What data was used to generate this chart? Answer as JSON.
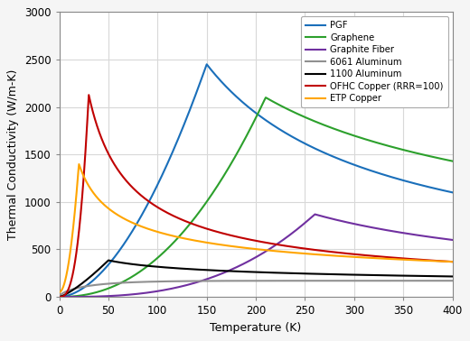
{
  "title": "",
  "xlabel": "Temperature (K)",
  "ylabel": "Thermal Conductivity (W/m-K)",
  "xlim": [
    0,
    400
  ],
  "ylim": [
    0,
    3000
  ],
  "xticks": [
    0,
    50,
    100,
    150,
    200,
    250,
    300,
    350,
    400
  ],
  "yticks": [
    0,
    500,
    1000,
    1500,
    2000,
    2500,
    3000
  ],
  "background_color": "#f5f5f5",
  "plot_bg_color": "#ffffff",
  "grid_color": "#d8d8d8",
  "series": [
    {
      "name": "PGF",
      "color": "#1a6fba"
    },
    {
      "name": "Graphene",
      "color": "#2ca02c"
    },
    {
      "name": "Graphite Fiber",
      "color": "#7030a0"
    },
    {
      "name": "6061 Aluminum",
      "color": "#909090"
    },
    {
      "name": "1100 Aluminum",
      "color": "#000000"
    },
    {
      "name": "OFHC Copper (RRR=100)",
      "color": "#c00000"
    },
    {
      "name": "ETP Copper",
      "color": "#ffa500"
    }
  ]
}
